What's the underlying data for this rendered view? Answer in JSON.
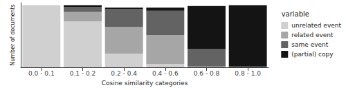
{
  "chart_data": {
    "type": "bar",
    "stacked": true,
    "x_label": "Cosine similarity categories",
    "y_label": "Number of documents",
    "legend_title": "variable",
    "legend": "right",
    "grid": false,
    "tick_labels": "x",
    "categories": [
      "0.0 - 0.1",
      "0.1 - 0.2",
      "0.2 - 0.4",
      "0.4 - 0.6",
      "0.6 - 0.8",
      "0.8 - 1.0"
    ],
    "ylim": [
      0,
      80
    ],
    "series": [
      {
        "name": "unrelated event",
        "color": "#d0d0d0",
        "values": [
          77,
          57,
          17,
          4,
          0,
          0
        ]
      },
      {
        "name": "related event",
        "color": "#a6a6a6",
        "values": [
          0,
          12,
          33,
          36,
          1,
          0
        ]
      },
      {
        "name": "same event",
        "color": "#636363",
        "values": [
          0,
          6,
          22,
          30,
          22,
          1
        ]
      },
      {
        "name": "(partial) copy",
        "color": "#141414",
        "values": [
          0,
          2,
          2,
          4,
          53,
          76
        ]
      }
    ]
  }
}
